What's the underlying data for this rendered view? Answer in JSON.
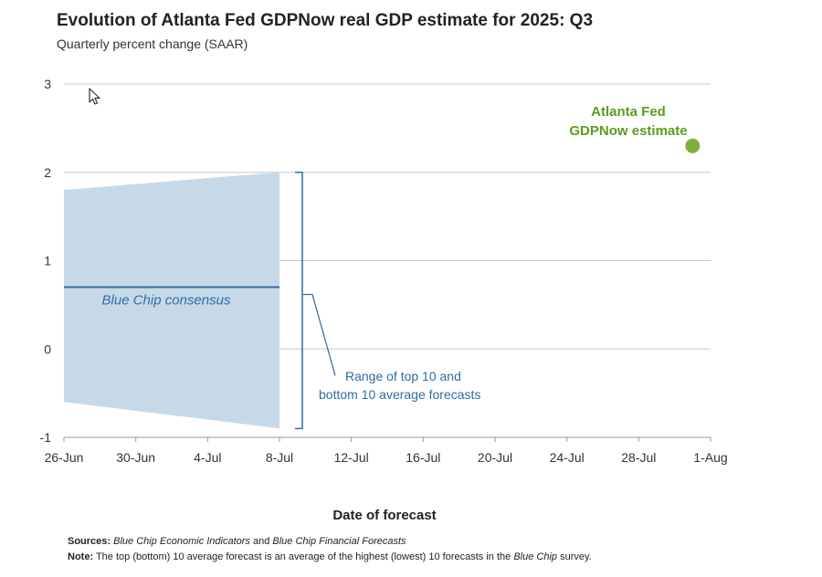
{
  "chart_data": {
    "type": "line",
    "title": "Evolution of Atlanta Fed GDPNow real GDP estimate for 2025: Q3",
    "subtitle": "Quarterly percent change (SAAR)",
    "xlabel": "Date of forecast",
    "ylabel": "",
    "ylim": [
      -1,
      3
    ],
    "yticks": [
      -1,
      0,
      1,
      2,
      3
    ],
    "x_ticks": [
      "26-Jun",
      "30-Jun",
      "4-Jul",
      "8-Jul",
      "12-Jul",
      "16-Jul",
      "20-Jul",
      "24-Jul",
      "28-Jul",
      "1-Aug"
    ],
    "grid": true,
    "blue_chip_range": {
      "x": [
        "26-Jun",
        "8-Jul"
      ],
      "top": [
        1.8,
        2.0
      ],
      "bottom": [
        -0.6,
        -0.9
      ],
      "label": "Range of top 10 and bottom 10 average forecasts",
      "label_lines": [
        "Range of top 10 and",
        "bottom 10 average forecasts"
      ]
    },
    "blue_chip_consensus": {
      "label": "Blue Chip consensus",
      "x": [
        "26-Jun",
        "8-Jul"
      ],
      "y": [
        0.7,
        0.7
      ]
    },
    "gdpnow": {
      "label": "Atlanta Fed GDPNow estimate",
      "label_lines": [
        "Atlanta Fed",
        "GDPNow estimate"
      ],
      "x": [
        "31-Jul"
      ],
      "y": [
        2.3
      ]
    },
    "colors": {
      "range_fill": "#c6d9e8",
      "consensus": "#2e6ba6",
      "annotation": "#2e6ba6",
      "gdpnow": "#7fb03a",
      "gdpnow_text": "#5e9a1f",
      "grid": "#c8c8c8"
    }
  },
  "footnotes": {
    "sources_label": "Sources:",
    "sources_text_1": "Blue Chip Economic Indicators",
    "sources_text_2": " and ",
    "sources_text_3": "Blue Chip Financial Forecasts",
    "note_label": "Note:",
    "note_text_1": " The top (bottom) 10 average forecast is an average of the highest (lowest) 10 forecasts in the ",
    "note_text_2": "Blue Chip",
    "note_text_3": " survey."
  }
}
